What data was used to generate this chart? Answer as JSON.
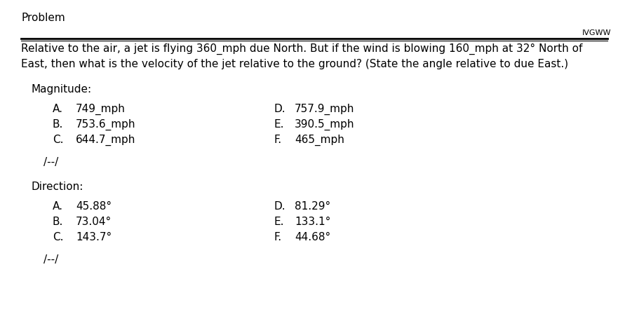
{
  "bg_color": "#ffffff",
  "title_text": "Problem",
  "watermark": "IVGWW",
  "problem_text_line1": "Relative to the air, a jet is flying 360_mph due North. But if the wind is blowing 160_mph at 32° North of",
  "problem_text_line2": "East, then what is the velocity of the jet relative to the ground? (State the angle relative to due East.)",
  "magnitude_label": "Magnitude:",
  "magnitude_left": [
    [
      "A.",
      "749_mph"
    ],
    [
      "B.",
      "753.6_mph"
    ],
    [
      "C.",
      "644.7_mph"
    ]
  ],
  "magnitude_right": [
    [
      "D.",
      "757.9_mph"
    ],
    [
      "E.",
      "390.5_mph"
    ],
    [
      "F.",
      "465_mph"
    ]
  ],
  "magnitude_separator": "/--/",
  "direction_label": "Direction:",
  "direction_left": [
    [
      "A.",
      "45.88°"
    ],
    [
      "B.",
      "73.04°"
    ],
    [
      "C.",
      "143.7°"
    ]
  ],
  "direction_right": [
    [
      "D.",
      "81.29°"
    ],
    [
      "E.",
      "133.1°"
    ],
    [
      "F.",
      "44.68°"
    ]
  ],
  "direction_separator": "/--/",
  "font_family": "DejaVu Sans",
  "title_fontsize": 11,
  "body_fontsize": 11,
  "watermark_fontsize": 8,
  "choice_fontsize": 11
}
